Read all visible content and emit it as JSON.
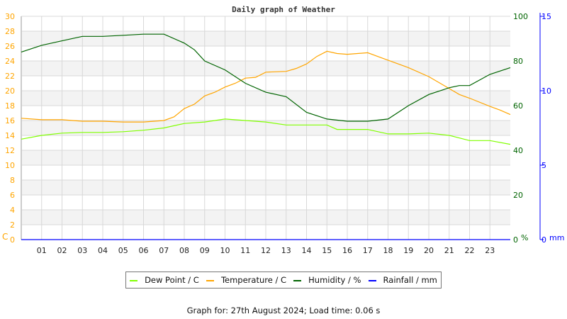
{
  "chart_data": {
    "type": "line",
    "title": "Daily graph of Weather",
    "x_ticks": [
      "01",
      "02",
      "03",
      "04",
      "05",
      "06",
      "07",
      "08",
      "09",
      "10",
      "11",
      "12",
      "13",
      "14",
      "15",
      "16",
      "17",
      "18",
      "19",
      "20",
      "21",
      "22",
      "23"
    ],
    "xlim": [
      0,
      24
    ],
    "left_axis": {
      "label": "C",
      "ylim": [
        0,
        30
      ],
      "ticks": [
        "0",
        "2",
        "4",
        "6",
        "8",
        "10",
        "12",
        "14",
        "16",
        "18",
        "20",
        "22",
        "24",
        "26",
        "28",
        "30"
      ],
      "color": "#ffa500"
    },
    "humidity_axis": {
      "label": "%",
      "ylim": [
        0,
        100
      ],
      "ticks": [
        "0",
        "20",
        "40",
        "60",
        "80",
        "100"
      ],
      "color": "#006400"
    },
    "rain_axis": {
      "label": "mm",
      "ylim": [
        0,
        15
      ],
      "ticks": [
        "0",
        "5",
        "10",
        "15"
      ],
      "color": "#0000ff"
    },
    "series": [
      {
        "name": "Dew Point / C",
        "axis": "left",
        "color": "#80ff00",
        "x": [
          0,
          1,
          2,
          3,
          4,
          5,
          6,
          7,
          8,
          9,
          10,
          11,
          12,
          13,
          14,
          15,
          15.5,
          16,
          17,
          18,
          19,
          20,
          21,
          22,
          23,
          24
        ],
        "values": [
          13.5,
          14.0,
          14.3,
          14.4,
          14.4,
          14.5,
          14.7,
          15.0,
          15.6,
          15.8,
          16.2,
          16.0,
          15.8,
          15.4,
          15.4,
          15.4,
          14.8,
          14.8,
          14.8,
          14.2,
          14.2,
          14.3,
          14.0,
          13.3,
          13.3,
          12.8
        ]
      },
      {
        "name": "Temperature / C",
        "axis": "left",
        "color": "#ffa500",
        "x": [
          0,
          1,
          2,
          3,
          4,
          5,
          6,
          7,
          7.5,
          8,
          8.5,
          9,
          9.5,
          10,
          10.5,
          11,
          11.5,
          12,
          13,
          13.5,
          14,
          14.5,
          15,
          15.5,
          16,
          17,
          17.5,
          18,
          19,
          20,
          21,
          21.5,
          22,
          23,
          23.5,
          24
        ],
        "values": [
          16.3,
          16.1,
          16.1,
          15.9,
          15.9,
          15.8,
          15.8,
          16.0,
          16.5,
          17.6,
          18.2,
          19.3,
          19.8,
          20.5,
          21.0,
          21.7,
          21.8,
          22.5,
          22.6,
          23.0,
          23.6,
          24.6,
          25.3,
          25.0,
          24.9,
          25.1,
          24.6,
          24.1,
          23.1,
          21.9,
          20.3,
          19.5,
          19.0,
          17.9,
          17.4,
          16.8
        ]
      },
      {
        "name": "Humidity / %",
        "axis": "humidity",
        "color": "#006400",
        "x": [
          0,
          1,
          2,
          3,
          4,
          5,
          6,
          7,
          8,
          8.5,
          9,
          10,
          11,
          12,
          13,
          14,
          15,
          16,
          17,
          18,
          19,
          20,
          21,
          21.5,
          22,
          23,
          24
        ],
        "values": [
          84,
          87,
          89,
          91,
          91,
          91.5,
          92,
          92,
          88,
          85,
          80,
          76,
          70,
          66,
          64,
          57,
          54,
          53,
          53,
          54,
          60,
          65,
          68,
          69,
          69,
          74,
          77
        ]
      },
      {
        "name": "Rainfall / mm",
        "axis": "rain",
        "color": "#0000ff",
        "x": [
          0,
          24
        ],
        "values": [
          0,
          0
        ]
      }
    ]
  },
  "footer": "Graph for: 27th August 2024; Load time: 0.06 s"
}
